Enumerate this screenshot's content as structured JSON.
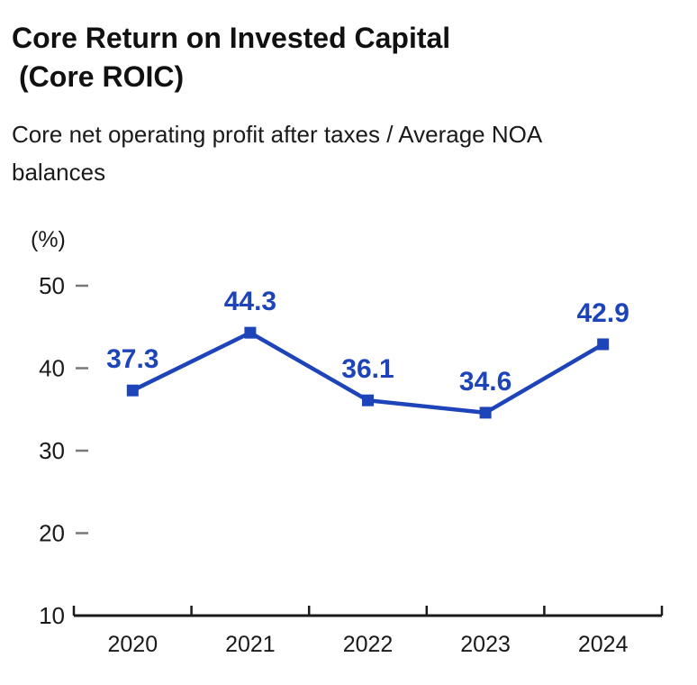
{
  "header": {
    "title_line1": "Core Return on Invested Capital",
    "title_line2": "(Core ROIC)",
    "subtitle_line1": "Core net operating profit after taxes / Average NOA",
    "subtitle_line2": "balances"
  },
  "chart_data": {
    "type": "line",
    "title": "Core Return on Invested Capital (Core ROIC)",
    "subtitle": "Core net operating profit after taxes / Average NOA balances",
    "unit_label": "(%)",
    "categories": [
      "2020",
      "2021",
      "2022",
      "2023",
      "2024"
    ],
    "series": [
      {
        "name": "Core ROIC",
        "values": [
          37.3,
          44.3,
          36.1,
          34.6,
          42.9
        ]
      }
    ],
    "data_labels": [
      "37.3",
      "44.3",
      "36.1",
      "34.6",
      "42.9"
    ],
    "ylim": [
      10,
      50
    ],
    "yticks": [
      10,
      20,
      30,
      40,
      50
    ],
    "grid": false,
    "legend": "none",
    "marker": "square",
    "colors": {
      "line": "#1d44b8",
      "data_label": "#1d44b8",
      "axis": "#1a1a1a",
      "y_tick_dash": "#787878",
      "text": "#1a1a1a"
    }
  }
}
